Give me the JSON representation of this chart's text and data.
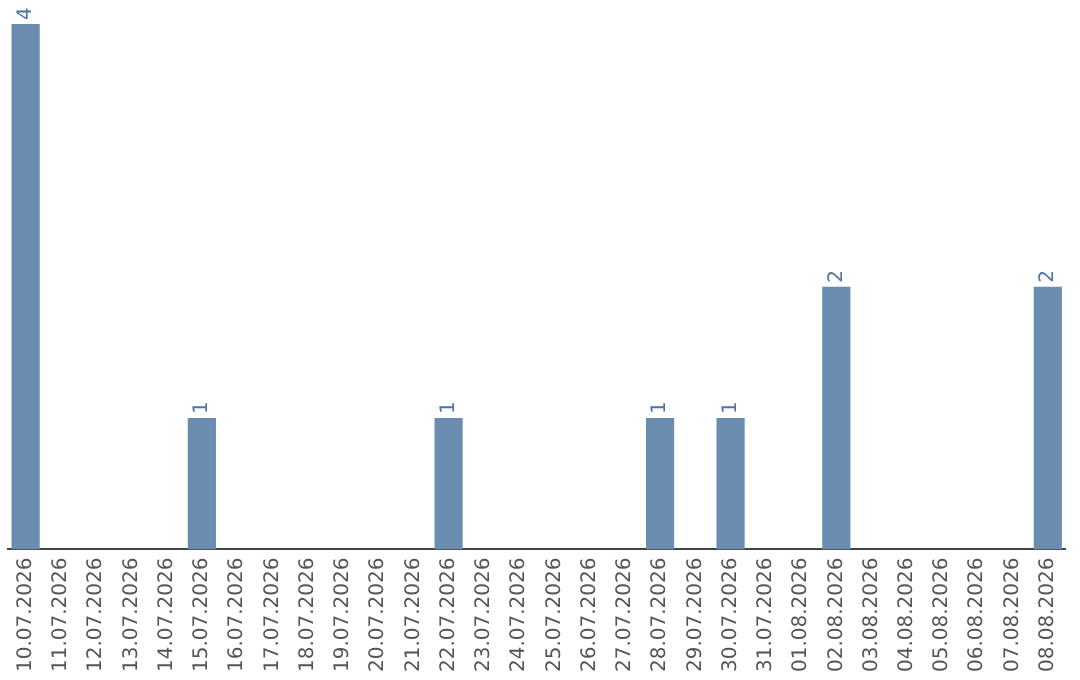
{
  "chart_data": {
    "type": "bar",
    "categories": [
      "10.07.2026",
      "11.07.2026",
      "12.07.2026",
      "13.07.2026",
      "14.07.2026",
      "15.07.2026",
      "16.07.2026",
      "17.07.2026",
      "18.07.2026",
      "19.07.2026",
      "20.07.2026",
      "21.07.2026",
      "22.07.2026",
      "23.07.2026",
      "24.07.2026",
      "25.07.2026",
      "26.07.2026",
      "27.07.2026",
      "28.07.2026",
      "29.07.2026",
      "30.07.2026",
      "31.07.2026",
      "01.08.2026",
      "02.08.2026",
      "03.08.2026",
      "04.08.2026",
      "05.08.2026",
      "06.08.2026",
      "07.08.2026",
      "08.08.2026"
    ],
    "values": [
      4,
      0,
      0,
      0,
      0,
      1,
      0,
      0,
      0,
      0,
      0,
      0,
      1,
      0,
      0,
      0,
      0,
      0,
      1,
      0,
      1,
      0,
      0,
      2,
      0,
      0,
      0,
      0,
      0,
      2
    ],
    "value_labels": [
      "4",
      null,
      null,
      null,
      null,
      "1",
      null,
      null,
      null,
      null,
      null,
      null,
      "1",
      null,
      null,
      null,
      null,
      null,
      "1",
      null,
      "1",
      null,
      null,
      "2",
      null,
      null,
      null,
      null,
      null,
      "2"
    ],
    "color": "#6a8caf",
    "grid": false,
    "legend": false
  }
}
